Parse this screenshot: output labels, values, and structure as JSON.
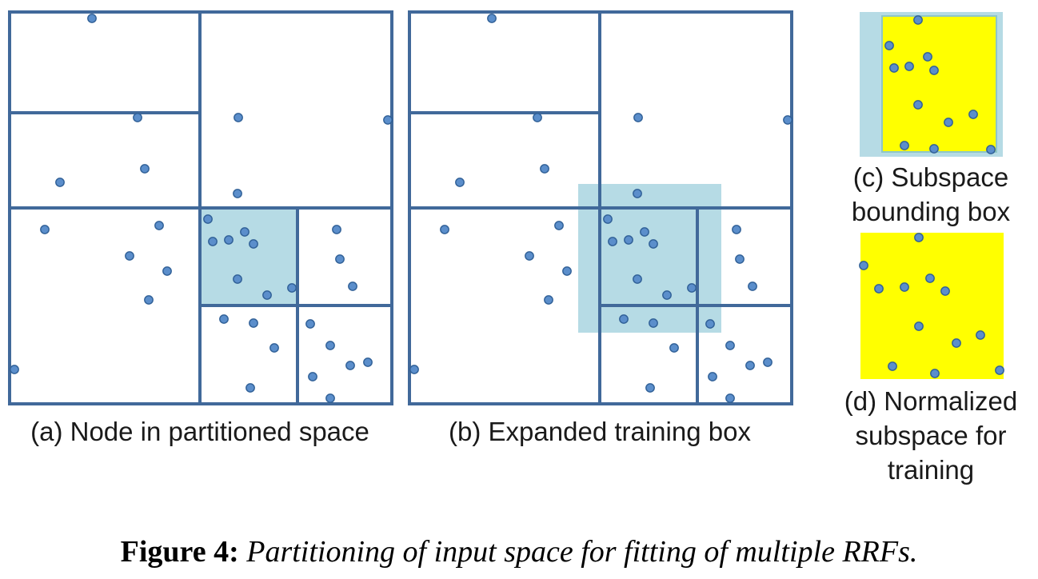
{
  "colors": {
    "border": "#41699a",
    "point_fill": "#5b8ecb",
    "point_stroke": "#2f5f96",
    "highlight": "#b6dbe5",
    "yellow": "#ffff00"
  },
  "captions": {
    "a": "(a) Node in partitioned space",
    "b": "(b) Expanded training box",
    "c": "(c) Subspace bounding box",
    "d": "(d) Normalized subspace for training"
  },
  "figure_caption": {
    "label": "Figure 4:",
    "text": "Partitioning of input space for fitting of multiple RRFs."
  }
}
